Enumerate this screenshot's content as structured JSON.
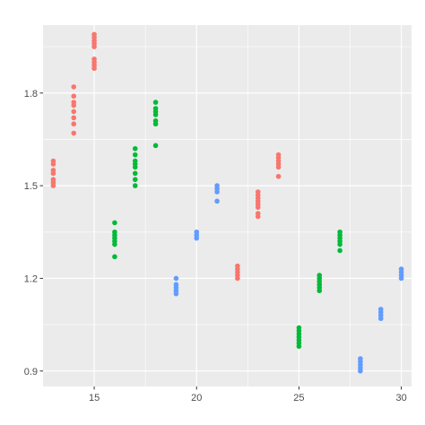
{
  "chart_data": {
    "type": "scatter",
    "title": "",
    "xlabel": "",
    "ylabel": "",
    "xlim": [
      12.5,
      30.5
    ],
    "ylim": [
      0.85,
      2.02
    ],
    "x_ticks": [
      15,
      20,
      25,
      30
    ],
    "x_tick_labels": [
      "15",
      "20",
      "25",
      "30"
    ],
    "y_ticks": [
      0.9,
      1.2,
      1.5,
      1.8
    ],
    "y_tick_labels": [
      "0.9",
      "1.2",
      "1.5",
      "1.8"
    ],
    "grid": true,
    "legend": "none",
    "background": "#ebebeb",
    "series": [
      {
        "color": "#F8766D",
        "points": [
          [
            13,
            1.5
          ],
          [
            13,
            1.51
          ],
          [
            13,
            1.52
          ],
          [
            13,
            1.54
          ],
          [
            13,
            1.55
          ],
          [
            13,
            1.57
          ],
          [
            13,
            1.58
          ],
          [
            14,
            1.67
          ],
          [
            14,
            1.7
          ],
          [
            14,
            1.72
          ],
          [
            14,
            1.74
          ],
          [
            14,
            1.76
          ],
          [
            14,
            1.77
          ],
          [
            14,
            1.79
          ],
          [
            14,
            1.82
          ],
          [
            15,
            1.88
          ],
          [
            15,
            1.89
          ],
          [
            15,
            1.9
          ],
          [
            15,
            1.91
          ],
          [
            15,
            1.95
          ],
          [
            15,
            1.96
          ],
          [
            15,
            1.97
          ],
          [
            15,
            1.98
          ],
          [
            15,
            1.99
          ],
          [
            22,
            1.2
          ],
          [
            22,
            1.21
          ],
          [
            22,
            1.22
          ],
          [
            22,
            1.23
          ],
          [
            22,
            1.24
          ],
          [
            23,
            1.4
          ],
          [
            23,
            1.41
          ],
          [
            23,
            1.43
          ],
          [
            23,
            1.44
          ],
          [
            23,
            1.45
          ],
          [
            23,
            1.46
          ],
          [
            23,
            1.47
          ],
          [
            23,
            1.48
          ],
          [
            24,
            1.53
          ],
          [
            24,
            1.56
          ],
          [
            24,
            1.57
          ],
          [
            24,
            1.58
          ],
          [
            24,
            1.59
          ],
          [
            24,
            1.6
          ]
        ]
      },
      {
        "color": "#00BA38",
        "points": [
          [
            16,
            1.27
          ],
          [
            16,
            1.31
          ],
          [
            16,
            1.32
          ],
          [
            16,
            1.33
          ],
          [
            16,
            1.34
          ],
          [
            16,
            1.35
          ],
          [
            16,
            1.38
          ],
          [
            17,
            1.5
          ],
          [
            17,
            1.52
          ],
          [
            17,
            1.54
          ],
          [
            17,
            1.56
          ],
          [
            17,
            1.57
          ],
          [
            17,
            1.58
          ],
          [
            17,
            1.6
          ],
          [
            17,
            1.62
          ],
          [
            18,
            1.63
          ],
          [
            18,
            1.7
          ],
          [
            18,
            1.71
          ],
          [
            18,
            1.73
          ],
          [
            18,
            1.74
          ],
          [
            18,
            1.75
          ],
          [
            18,
            1.77
          ],
          [
            25,
            0.98
          ],
          [
            25,
            0.99
          ],
          [
            25,
            1.0
          ],
          [
            25,
            1.01
          ],
          [
            25,
            1.02
          ],
          [
            25,
            1.03
          ],
          [
            25,
            1.04
          ],
          [
            26,
            1.16
          ],
          [
            26,
            1.17
          ],
          [
            26,
            1.18
          ],
          [
            26,
            1.19
          ],
          [
            26,
            1.2
          ],
          [
            26,
            1.21
          ],
          [
            27,
            1.29
          ],
          [
            27,
            1.31
          ],
          [
            27,
            1.32
          ],
          [
            27,
            1.33
          ],
          [
            27,
            1.34
          ],
          [
            27,
            1.35
          ]
        ]
      },
      {
        "color": "#619CFF",
        "points": [
          [
            19,
            1.15
          ],
          [
            19,
            1.16
          ],
          [
            19,
            1.17
          ],
          [
            19,
            1.18
          ],
          [
            19,
            1.2
          ],
          [
            20,
            1.33
          ],
          [
            20,
            1.34
          ],
          [
            20,
            1.35
          ],
          [
            21,
            1.45
          ],
          [
            21,
            1.48
          ],
          [
            21,
            1.49
          ],
          [
            21,
            1.5
          ],
          [
            28,
            0.9
          ],
          [
            28,
            0.91
          ],
          [
            28,
            0.92
          ],
          [
            28,
            0.93
          ],
          [
            28,
            0.94
          ],
          [
            29,
            1.07
          ],
          [
            29,
            1.08
          ],
          [
            29,
            1.09
          ],
          [
            29,
            1.1
          ],
          [
            30,
            1.2
          ],
          [
            30,
            1.21
          ],
          [
            30,
            1.22
          ],
          [
            30,
            1.23
          ]
        ]
      }
    ]
  }
}
